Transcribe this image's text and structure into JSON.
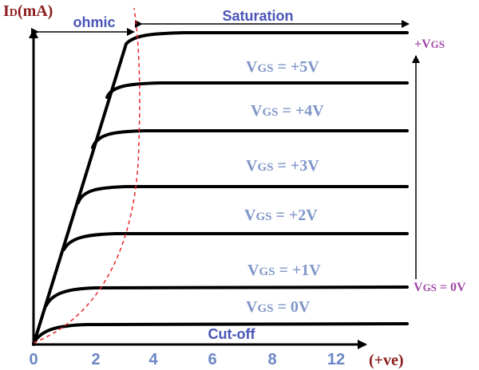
{
  "y_axis": {
    "title_main": "I",
    "title_sub": "D",
    "title_rest": "(mA)"
  },
  "x_axis": {
    "ticks": [
      "0",
      "2",
      "4",
      "6",
      "8",
      "12"
    ],
    "end_label": "(+ve)"
  },
  "regions": {
    "ohmic": "ohmic",
    "saturation": "Saturation",
    "cutoff": "Cut-off"
  },
  "curves": [
    {
      "prefix": "V",
      "sub": "GS",
      "value": " = +5V"
    },
    {
      "prefix": "V",
      "sub": "GS",
      "value": " = +4V"
    },
    {
      "prefix": "V",
      "sub": "GS",
      "value": " = +3V"
    },
    {
      "prefix": "V",
      "sub": "GS",
      "value": " = +2V"
    },
    {
      "prefix": "V",
      "sub": "GS",
      "value": " = +1V"
    },
    {
      "prefix": "V",
      "sub": "GS",
      "value": " = 0V"
    }
  ],
  "side_arrow": {
    "top": {
      "prefix": "+V",
      "sub": "GS"
    },
    "bottom": {
      "prefix": "V",
      "sub": "GS",
      "value": " = 0V"
    }
  },
  "colors": {
    "axis_title": "#8b1a1a",
    "ticks": "#6a86c4",
    "region_labels": "#4a55b8",
    "curve_labels": "#7f96c8",
    "side_labels": "#a04aa8",
    "boundary": "#e8262b",
    "curves": "#000000"
  }
}
